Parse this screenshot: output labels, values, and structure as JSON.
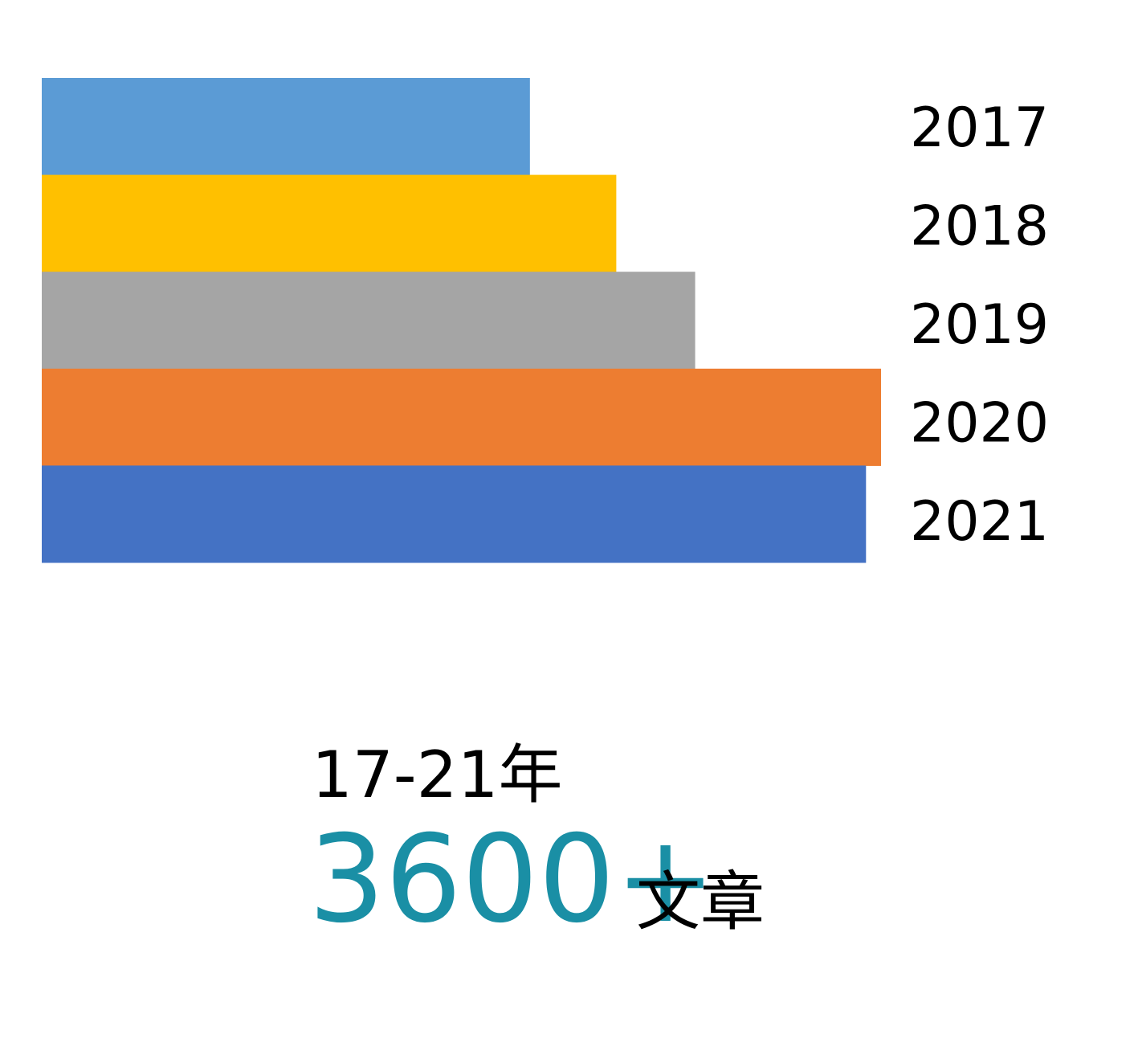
{
  "chart_data": {
    "type": "bar",
    "orientation": "horizontal",
    "categories": [
      "2017",
      "2018",
      "2019",
      "2020",
      "2021"
    ],
    "values": [
      520,
      612,
      696,
      894,
      878
    ],
    "colors": [
      "#5b9bd5",
      "#ffc000",
      "#a5a5a5",
      "#ed7d31",
      "#4472c4"
    ],
    "xlim": [
      0,
      894
    ],
    "subtitle": "17-21年",
    "total_label": "3600+",
    "total_unit": "文章"
  }
}
